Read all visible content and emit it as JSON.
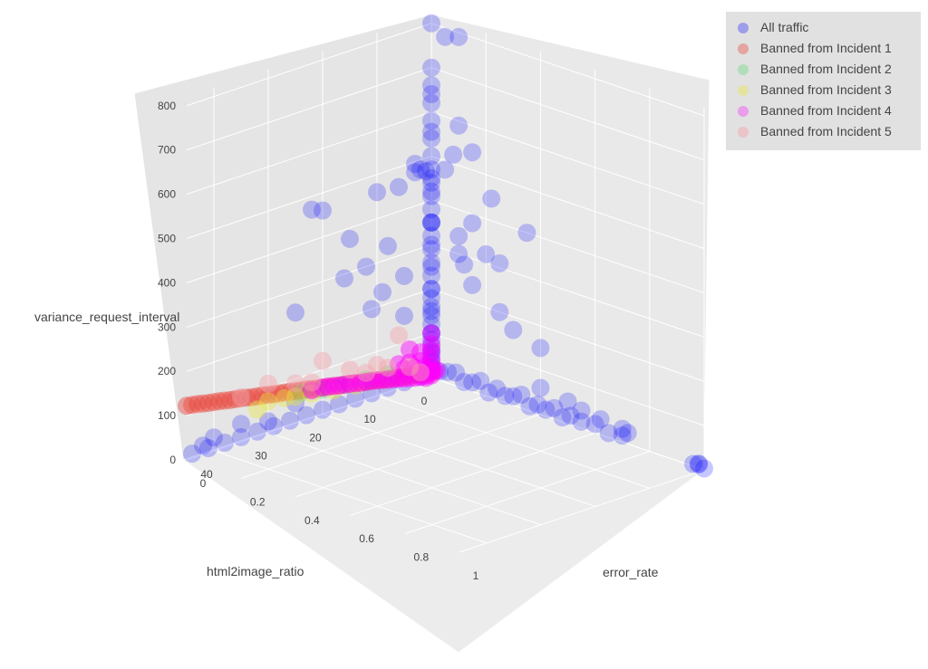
{
  "chart_data": {
    "type": "scatter3d",
    "axes": {
      "z": {
        "title": "variance_request_interval",
        "ticks": [
          0,
          100,
          200,
          300,
          400,
          500,
          600,
          700,
          800
        ],
        "range": [
          0,
          820
        ]
      },
      "x": {
        "title": "html2image_ratio",
        "ticks": [
          0,
          10,
          20,
          30,
          40
        ],
        "range": [
          0,
          45
        ]
      },
      "y": {
        "title": "error_rate",
        "ticks": [
          0,
          0.2,
          0.4,
          0.6,
          0.8,
          1
        ],
        "range": [
          0,
          1
        ]
      }
    },
    "legend_position": "top-right",
    "series": [
      {
        "name": "All traffic",
        "color": "#0000ff",
        "opacity": 0.22,
        "points": [
          [
            0,
            0,
            640
          ],
          [
            0,
            0,
            555
          ],
          [
            0,
            0,
            450
          ],
          [
            0,
            0,
            420
          ],
          [
            0,
            0,
            350
          ],
          [
            0,
            0,
            300
          ],
          [
            0,
            0,
            250
          ],
          [
            0,
            0,
            200
          ],
          [
            0,
            0,
            150
          ],
          [
            0,
            0,
            100
          ],
          [
            0,
            0,
            60
          ],
          [
            1,
            0,
            470
          ],
          [
            2,
            0,
            478
          ],
          [
            3,
            0,
            476
          ],
          [
            3,
            0,
            495
          ],
          [
            6,
            0,
            455
          ],
          [
            10,
            0,
            460
          ],
          [
            20,
            0,
            460
          ],
          [
            22,
            0,
            470
          ],
          [
            15,
            0,
            375
          ],
          [
            8,
            0,
            330
          ],
          [
            12,
            0,
            300
          ],
          [
            16,
            0,
            290
          ],
          [
            25,
            0,
            250
          ],
          [
            9,
            0,
            230
          ],
          [
            5,
            0,
            250
          ],
          [
            5,
            0,
            160
          ],
          [
            11,
            0,
            200
          ],
          [
            0,
            0,
            800
          ],
          [
            0,
            0.05,
            780
          ],
          [
            0,
            0.1,
            790
          ],
          [
            0,
            0.08,
            520
          ],
          [
            0,
            0.1,
            590
          ],
          [
            0,
            0.15,
            540
          ],
          [
            0,
            0.05,
            480
          ],
          [
            0,
            0,
            350
          ],
          [
            0,
            0.22,
            450
          ],
          [
            0,
            0.35,
            400
          ],
          [
            0,
            0.12,
            280
          ],
          [
            0,
            0.15,
            240
          ],
          [
            0,
            0.25,
            200
          ],
          [
            0,
            0.3,
            170
          ],
          [
            0,
            0.4,
            150
          ],
          [
            0,
            0.15,
            380
          ],
          [
            0,
            0.1,
            300
          ],
          [
            0,
            0.25,
            310
          ],
          [
            0,
            0.2,
            320
          ],
          [
            0,
            0.1,
            340
          ],
          [
            0,
            0,
            700
          ],
          [
            0,
            0,
            660
          ],
          [
            0,
            0,
            620
          ],
          [
            0,
            0,
            580
          ],
          [
            0,
            0,
            540
          ],
          [
            0,
            0,
            500
          ],
          [
            0,
            0,
            470
          ],
          [
            0,
            0,
            440
          ],
          [
            0,
            0,
            410
          ],
          [
            0,
            0,
            380
          ],
          [
            0,
            0,
            350
          ],
          [
            0,
            0,
            320
          ],
          [
            0,
            0,
            290
          ],
          [
            0,
            0,
            260
          ],
          [
            0,
            0,
            230
          ],
          [
            0,
            0,
            200
          ],
          [
            0,
            0,
            180
          ],
          [
            0,
            0,
            160
          ],
          [
            0,
            0,
            140
          ],
          [
            0,
            0,
            120
          ],
          [
            0,
            0,
            100
          ],
          [
            0,
            0,
            85
          ],
          [
            0,
            0,
            70
          ],
          [
            0,
            0,
            55
          ],
          [
            0,
            0,
            45
          ],
          [
            0,
            0,
            35
          ],
          [
            0,
            0,
            25
          ],
          [
            0,
            0,
            15
          ],
          [
            0,
            0.03,
            20
          ],
          [
            0,
            0.06,
            25
          ],
          [
            0,
            0.09,
            30
          ],
          [
            0,
            0.12,
            15
          ],
          [
            0,
            0.15,
            20
          ],
          [
            0,
            0.18,
            30
          ],
          [
            0,
            0.21,
            10
          ],
          [
            0,
            0.24,
            25
          ],
          [
            0,
            0.27,
            15
          ],
          [
            0,
            0.3,
            20
          ],
          [
            0,
            0.33,
            30
          ],
          [
            0,
            0.36,
            10
          ],
          [
            0,
            0.39,
            20
          ],
          [
            0,
            0.42,
            15
          ],
          [
            0,
            0.45,
            25
          ],
          [
            0,
            0.48,
            10
          ],
          [
            0,
            0.51,
            20
          ],
          [
            0,
            0.55,
            15
          ],
          [
            0,
            0.6,
            20
          ],
          [
            0,
            0.65,
            10
          ],
          [
            0,
            0.7,
            15
          ],
          [
            0,
            0.4,
            60
          ],
          [
            0,
            0.5,
            50
          ],
          [
            0,
            0.55,
            40
          ],
          [
            0,
            0.62,
            35
          ],
          [
            0,
            0.7,
            30
          ],
          [
            0,
            0.72,
            25
          ],
          [
            0,
            0.96,
            5
          ],
          [
            0,
            0.98,
            8
          ],
          [
            0,
            1.0,
            3
          ],
          [
            0,
            0.98,
            10
          ],
          [
            2,
            0,
            10
          ],
          [
            5,
            0,
            10
          ],
          [
            8,
            0,
            10
          ],
          [
            11,
            0,
            10
          ],
          [
            14,
            0,
            10
          ],
          [
            17,
            0,
            10
          ],
          [
            20,
            0,
            10
          ],
          [
            23,
            0,
            10
          ],
          [
            26,
            0,
            10
          ],
          [
            29,
            0,
            10
          ],
          [
            32,
            0,
            10
          ],
          [
            35,
            0,
            10
          ],
          [
            38,
            0,
            10
          ],
          [
            41,
            0,
            10
          ],
          [
            44,
            0,
            10
          ],
          [
            40,
            0,
            30
          ],
          [
            35,
            0,
            40
          ],
          [
            30,
            0,
            25
          ],
          [
            25,
            0,
            45
          ],
          [
            42,
            0,
            20
          ]
        ]
      },
      {
        "name": "Banned from Incident 1",
        "color": "#e8483f",
        "opacity": 0.45,
        "points": [
          [
            0,
            0,
            10
          ],
          [
            1,
            0,
            12
          ],
          [
            2,
            0,
            15
          ],
          [
            3,
            0,
            18
          ],
          [
            4,
            0,
            20
          ],
          [
            5,
            0,
            22
          ],
          [
            6,
            0,
            25
          ],
          [
            7,
            0,
            28
          ],
          [
            8,
            0,
            30
          ],
          [
            9,
            0,
            32
          ],
          [
            10,
            0,
            35
          ],
          [
            11,
            0,
            38
          ],
          [
            12,
            0,
            40
          ],
          [
            13,
            0,
            42
          ],
          [
            14,
            0,
            45
          ],
          [
            15,
            0,
            48
          ],
          [
            16,
            0,
            50
          ],
          [
            17,
            0,
            52
          ],
          [
            18,
            0,
            55
          ],
          [
            19,
            0,
            58
          ],
          [
            20,
            0,
            60
          ],
          [
            21,
            0,
            62
          ],
          [
            22,
            0,
            65
          ],
          [
            23,
            0,
            68
          ],
          [
            24,
            0,
            70
          ],
          [
            25,
            0,
            72
          ],
          [
            26,
            0,
            75
          ],
          [
            27,
            0,
            78
          ],
          [
            28,
            0,
            80
          ],
          [
            29,
            0,
            82
          ],
          [
            30,
            0,
            85
          ],
          [
            31,
            0,
            88
          ],
          [
            32,
            0,
            90
          ],
          [
            33,
            0,
            92
          ],
          [
            34,
            0,
            95
          ],
          [
            35,
            0,
            98
          ],
          [
            36,
            0,
            100
          ],
          [
            37,
            0,
            102
          ],
          [
            38,
            0,
            105
          ],
          [
            39,
            0,
            108
          ],
          [
            40,
            0,
            110
          ],
          [
            41,
            0,
            112
          ],
          [
            42,
            0,
            115
          ],
          [
            43,
            0,
            118
          ],
          [
            44,
            0,
            120
          ],
          [
            45,
            0,
            122
          ]
        ]
      },
      {
        "name": "Banned from Incident 2",
        "color": "#3fd85a",
        "opacity": 0.3,
        "points": [
          [
            8,
            0,
            40
          ],
          [
            12,
            0,
            45
          ],
          [
            16,
            0,
            50
          ],
          [
            20,
            0,
            55
          ],
          [
            24,
            0,
            65
          ]
        ]
      },
      {
        "name": "Banned from Incident 3",
        "color": "#e8e83f",
        "opacity": 0.4,
        "points": [
          [
            18,
            0,
            45
          ],
          [
            22,
            0,
            55
          ],
          [
            25,
            0,
            60
          ],
          [
            27,
            0,
            65
          ],
          [
            30,
            0,
            70
          ],
          [
            14,
            0,
            40
          ],
          [
            32,
            0,
            60
          ]
        ]
      },
      {
        "name": "Banned from Incident 4",
        "color": "#ff00ff",
        "opacity": 0.45,
        "points": [
          [
            0,
            0,
            5
          ],
          [
            0,
            0,
            15
          ],
          [
            0,
            0,
            25
          ],
          [
            0,
            0,
            40
          ],
          [
            0,
            0,
            60
          ],
          [
            0,
            0,
            75
          ],
          [
            1,
            0,
            8
          ],
          [
            1,
            0,
            30
          ],
          [
            2,
            0,
            10
          ],
          [
            2,
            0,
            45
          ],
          [
            3,
            0,
            12
          ],
          [
            3,
            0,
            35
          ],
          [
            4,
            0,
            15
          ],
          [
            4,
            0,
            50
          ],
          [
            5,
            0,
            18
          ],
          [
            5,
            0,
            40
          ],
          [
            6,
            0,
            22
          ],
          [
            6,
            0,
            55
          ],
          [
            7,
            0,
            25
          ],
          [
            8,
            0,
            28
          ],
          [
            9,
            0,
            32
          ],
          [
            10,
            0,
            35
          ],
          [
            11,
            0,
            38
          ],
          [
            12,
            0,
            40
          ],
          [
            13,
            0,
            42
          ],
          [
            14,
            0,
            45
          ],
          [
            15,
            0,
            48
          ],
          [
            16,
            0,
            50
          ],
          [
            17,
            0,
            52
          ],
          [
            18,
            0,
            55
          ],
          [
            19,
            0,
            58
          ],
          [
            20,
            0,
            60
          ],
          [
            22,
            0,
            62
          ],
          [
            0,
            0.02,
            20
          ],
          [
            1,
            0.03,
            25
          ],
          [
            2,
            0.02,
            30
          ],
          [
            3,
            0.04,
            20
          ],
          [
            0,
            0,
            100
          ],
          [
            4,
            0,
            80
          ],
          [
            2,
            0,
            65
          ]
        ]
      },
      {
        "name": "Banned from Incident 5",
        "color": "#f4a7b0",
        "opacity": 0.45,
        "points": [
          [
            2,
            0,
            20
          ],
          [
            4,
            0,
            40
          ],
          [
            6,
            0,
            120
          ],
          [
            10,
            0,
            70
          ],
          [
            15,
            0,
            80
          ],
          [
            20,
            0,
            120
          ],
          [
            25,
            0,
            90
          ],
          [
            30,
            0,
            110
          ],
          [
            35,
            0,
            100
          ],
          [
            22,
            0,
            80
          ],
          [
            8,
            0,
            55
          ],
          [
            12,
            0,
            60
          ]
        ]
      }
    ]
  }
}
